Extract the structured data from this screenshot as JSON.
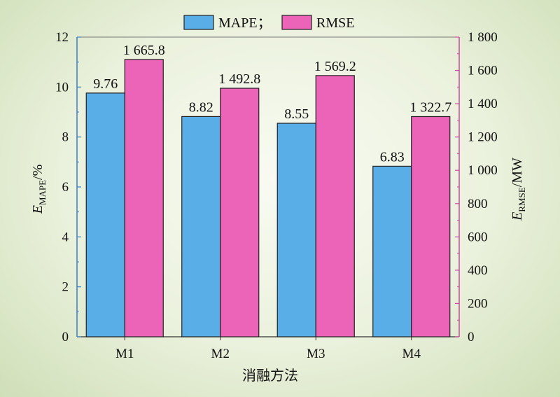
{
  "chart_data": {
    "type": "bar",
    "categories": [
      "M1",
      "M2",
      "M3",
      "M4"
    ],
    "series": [
      {
        "name": "MAPE；",
        "axis": "left",
        "values": [
          9.76,
          8.82,
          8.55,
          6.83
        ],
        "labels": [
          "9.76",
          "8.82",
          "8.55",
          "6.83"
        ],
        "color": "#5aaee8"
      },
      {
        "name": "RMSE",
        "axis": "right",
        "values": [
          1665.8,
          1492.8,
          1569.2,
          1322.7
        ],
        "labels": [
          "1 665.8",
          "1 492.8",
          "1 569.2",
          "1 322.7"
        ],
        "color": "#ec64b8"
      }
    ],
    "xlabel": "消融方法",
    "ylabel_left": {
      "main": "E",
      "sub": "MAPE",
      "rest": "/%"
    },
    "ylabel_right": {
      "main": "E",
      "sub": "RMSE",
      "rest": "/MW"
    },
    "ylim_left": [
      0,
      12
    ],
    "yticks_left": [
      "0",
      "2",
      "4",
      "6",
      "8",
      "10",
      "12"
    ],
    "ylim_right": [
      0,
      1800
    ],
    "yticks_right": [
      "0",
      "200",
      "400",
      "600",
      "800",
      "1 000",
      "1 200",
      "1 400",
      "1 600",
      "1 800"
    ],
    "left_axis_color": "#3a7dc4",
    "right_axis_color": "#d0479e",
    "legend_position": "top-center",
    "grid": false
  }
}
